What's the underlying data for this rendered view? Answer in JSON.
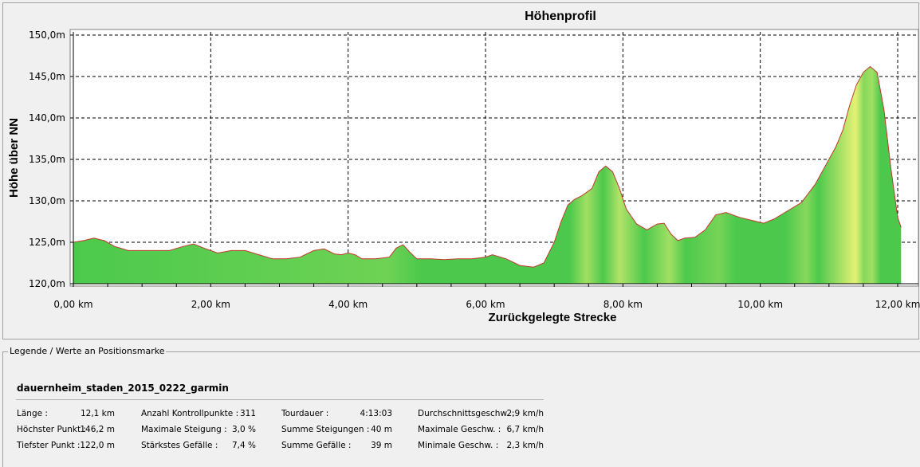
{
  "chart_data": {
    "type": "area",
    "title": "Höhenprofil",
    "xlabel": "Zurückgelegte Strecke",
    "ylabel": "Höhe über NN",
    "xlim": [
      0,
      12.0
    ],
    "ylim": [
      120,
      150
    ],
    "x_ticks": [
      "0,00 km",
      "2,00 km",
      "4,00 km",
      "6,00 km",
      "8,00 km",
      "10,00 km",
      "12,00 km"
    ],
    "y_ticks": [
      "120,0m",
      "125,0m",
      "130,0m",
      "135,0m",
      "140,0m",
      "145,0m",
      "150,0m"
    ],
    "grid": true,
    "line_color": "#c0392b",
    "fill_colors": [
      "#4cc94c",
      "#f5f57a"
    ],
    "series": [
      {
        "x": [
          0,
          0.15,
          0.3,
          0.45,
          0.6,
          0.8,
          1.0,
          1.2,
          1.4,
          1.6,
          1.75,
          1.9,
          2.1,
          2.3,
          2.5,
          2.7,
          2.9,
          3.1,
          3.3,
          3.5,
          3.65,
          3.8,
          3.9,
          4.0,
          4.1,
          4.2,
          4.4,
          4.6,
          4.7,
          4.8,
          4.9,
          5.0,
          5.2,
          5.4,
          5.6,
          5.8,
          6.0,
          6.1,
          6.3,
          6.5,
          6.7,
          6.85,
          7.0,
          7.1,
          7.2,
          7.3,
          7.4,
          7.55,
          7.65,
          7.75,
          7.85,
          7.95,
          8.05,
          8.2,
          8.35,
          8.5,
          8.6,
          8.7,
          8.8,
          8.9,
          9.05,
          9.2,
          9.35,
          9.5,
          9.7,
          9.9,
          10.05,
          10.2,
          10.4,
          10.6,
          10.8,
          11.0,
          11.1,
          11.2,
          11.3,
          11.4,
          11.5,
          11.6,
          11.7,
          11.8,
          11.9,
          12.0,
          12.05
        ],
        "y": [
          125.0,
          125.2,
          125.5,
          125.2,
          124.5,
          124.0,
          124.0,
          124.0,
          124.0,
          124.5,
          124.8,
          124.3,
          123.7,
          124.0,
          124.0,
          123.5,
          123.0,
          123.0,
          123.2,
          124.0,
          124.2,
          123.6,
          123.5,
          123.7,
          123.5,
          123.0,
          123.0,
          123.2,
          124.3,
          124.7,
          123.8,
          123.0,
          123.0,
          122.9,
          123.0,
          123.0,
          123.2,
          123.5,
          123.0,
          122.2,
          122.0,
          122.5,
          125.0,
          127.5,
          129.5,
          130.2,
          130.6,
          131.5,
          133.5,
          134.2,
          133.5,
          131.5,
          129.0,
          127.2,
          126.5,
          127.2,
          127.3,
          126.0,
          125.2,
          125.5,
          125.6,
          126.5,
          128.3,
          128.6,
          128.0,
          127.6,
          127.3,
          127.8,
          128.8,
          129.8,
          132.0,
          135.0,
          136.5,
          138.5,
          141.5,
          144.0,
          145.5,
          146.2,
          145.5,
          141.0,
          134.0,
          128.0,
          126.8
        ]
      }
    ]
  },
  "legend": {
    "caption": "Legende / Werte an Positionsmarke",
    "track_name": "dauernheim_staden_2015_0222_garmin",
    "stats": [
      [
        {
          "label": "Länge :",
          "value": "12,1 km"
        },
        {
          "label": "Anzahl Kontrollpunkte :",
          "value": "311"
        },
        {
          "label": "Tourdauer :",
          "value": "4:13:03"
        },
        {
          "label": "Durchschnittsgeschw. :",
          "value": "2,9 km/h"
        }
      ],
      [
        {
          "label": "Höchster Punkt :",
          "value": "146,2 m"
        },
        {
          "label": "Maximale Steigung :",
          "value": "3,0 %"
        },
        {
          "label": "Summe Steigungen :",
          "value": "40 m"
        },
        {
          "label": "Maximale Geschw. :",
          "value": "6,7 km/h"
        }
      ],
      [
        {
          "label": "Tiefster Punkt :",
          "value": "122,0 m"
        },
        {
          "label": "Stärkstes Gefälle :",
          "value": "7,4 %"
        },
        {
          "label": "Summe Gefälle :",
          "value": "39 m"
        },
        {
          "label": "Minimale Geschw. :",
          "value": "2,3 km/h"
        }
      ]
    ]
  }
}
